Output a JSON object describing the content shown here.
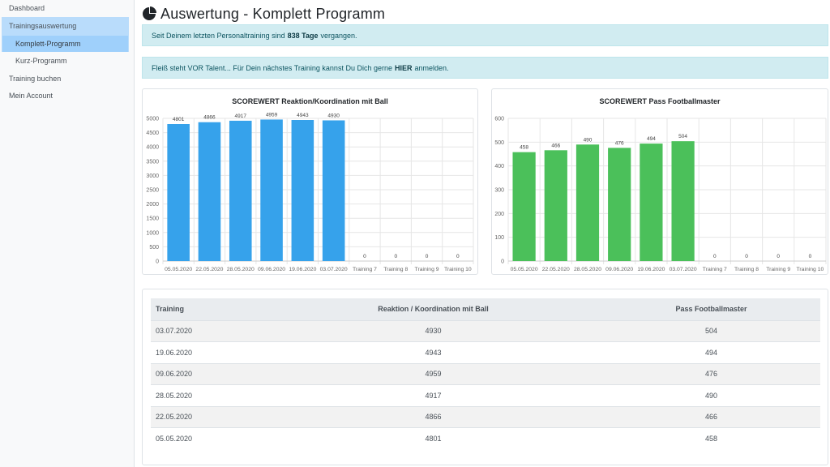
{
  "sidebar": {
    "items": [
      {
        "label": "Dashboard"
      },
      {
        "label": "Trainingsauswertung"
      },
      {
        "label": "Komplett-Programm"
      },
      {
        "label": "Kurz-Programm"
      },
      {
        "label": "Training buchen"
      },
      {
        "label": "Mein Account"
      }
    ]
  },
  "page": {
    "title": "Auswertung - Komplett Programm",
    "title_icon": "pie-chart-icon"
  },
  "alerts": {
    "last_training_prefix": "Seit Deinem letzten Personaltraining sind",
    "last_training_days": "838 Tage",
    "last_training_suffix": "vergangen.",
    "motivation_prefix": "Fleiß steht VOR Talent... Für Dein nächstes Training kannst Du Dich gerne",
    "motivation_link": "HIER",
    "motivation_suffix": "anmelden."
  },
  "colors": {
    "blue_bar": "#36a2eb",
    "green_bar": "#4bc05a",
    "alert_bg": "#d1ecf1",
    "sidebar_active": "#b9dcfb"
  },
  "chart_data": [
    {
      "type": "bar",
      "title": "SCOREWERT Reaktion/Koordination mit Ball",
      "categories": [
        "05.05.2020",
        "22.05.2020",
        "28.05.2020",
        "09.06.2020",
        "19.06.2020",
        "03.07.2020",
        "Training 7",
        "Training 8",
        "Training 9",
        "Training 10"
      ],
      "values": [
        4801,
        4866,
        4917,
        4959,
        4943,
        4930,
        0,
        0,
        0,
        0
      ],
      "ylim": [
        0,
        5000
      ],
      "yticks": [
        0,
        500,
        1000,
        1500,
        2000,
        2500,
        3000,
        3500,
        4000,
        4500,
        5000
      ],
      "color": "#36a2eb",
      "grid": true
    },
    {
      "type": "bar",
      "title": "SCOREWERT Pass Footballmaster",
      "categories": [
        "05.05.2020",
        "22.05.2020",
        "28.05.2020",
        "09.06.2020",
        "19.06.2020",
        "03.07.2020",
        "Training 7",
        "Training 8",
        "Training 9",
        "Training 10"
      ],
      "values": [
        458,
        466,
        490,
        476,
        494,
        504,
        0,
        0,
        0,
        0
      ],
      "ylim": [
        0,
        600
      ],
      "yticks": [
        0,
        100,
        200,
        300,
        400,
        500,
        600
      ],
      "color": "#4bc05a",
      "grid": true
    }
  ],
  "table": {
    "headers": [
      "Training",
      "Reaktion / Koordination mit Ball",
      "Pass Footballmaster"
    ],
    "rows": [
      [
        "03.07.2020",
        "4930",
        "504"
      ],
      [
        "19.06.2020",
        "4943",
        "494"
      ],
      [
        "09.06.2020",
        "4959",
        "476"
      ],
      [
        "28.05.2020",
        "4917",
        "490"
      ],
      [
        "22.05.2020",
        "4866",
        "466"
      ],
      [
        "05.05.2020",
        "4801",
        "458"
      ]
    ]
  }
}
